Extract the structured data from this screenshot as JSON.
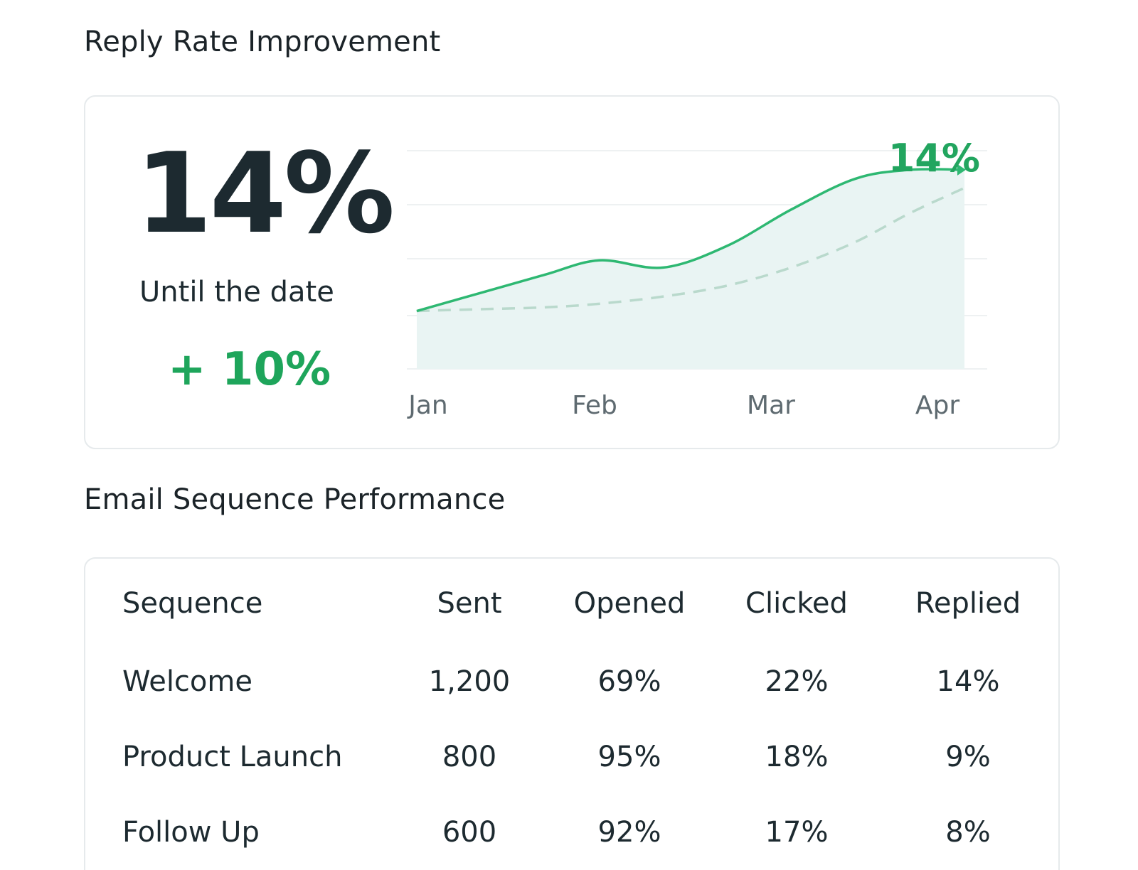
{
  "reply_section": {
    "title": "Reply Rate Improvement",
    "big_value": "14%",
    "caption": "Until the date",
    "delta": "+ 10%"
  },
  "chart_data": {
    "type": "area",
    "categories": [
      "Jan",
      "Feb",
      "Mar",
      "Apr"
    ],
    "series": [
      {
        "values": [
          6.2,
          7.2,
          8.2,
          9.0,
          8.6,
          9.8,
          11.8,
          13.5,
          14.0,
          14.0
        ]
      },
      {
        "values": [
          6.2,
          6.3,
          6.4,
          6.6,
          7.0,
          7.6,
          8.6,
          10.0,
          11.6,
          13.0
        ]
      }
    ],
    "x": [
      0,
      0.35,
      0.7,
      1.0,
      1.35,
      1.7,
      2.05,
      2.4,
      2.7,
      3.0
    ],
    "end_label": "14%",
    "title": "",
    "xlabel": "",
    "ylabel": "",
    "ylim": [
      3,
      16
    ],
    "grid": true,
    "colors": {
      "actual": "#2eb872",
      "baseline": "#b9d9cc",
      "fill": "#e9f4f3"
    }
  },
  "sequence_section": {
    "title": "Email Sequence Performance",
    "columns": [
      "Sequence",
      "Sent",
      "Opened",
      "Clicked",
      "Replied"
    ],
    "rows": [
      [
        "Welcome",
        "1,200",
        "69%",
        "22%",
        "14%"
      ],
      [
        "Product Launch",
        "800",
        "95%",
        "18%",
        "9%"
      ],
      [
        "Follow Up",
        "600",
        "92%",
        "17%",
        "8%"
      ]
    ]
  }
}
